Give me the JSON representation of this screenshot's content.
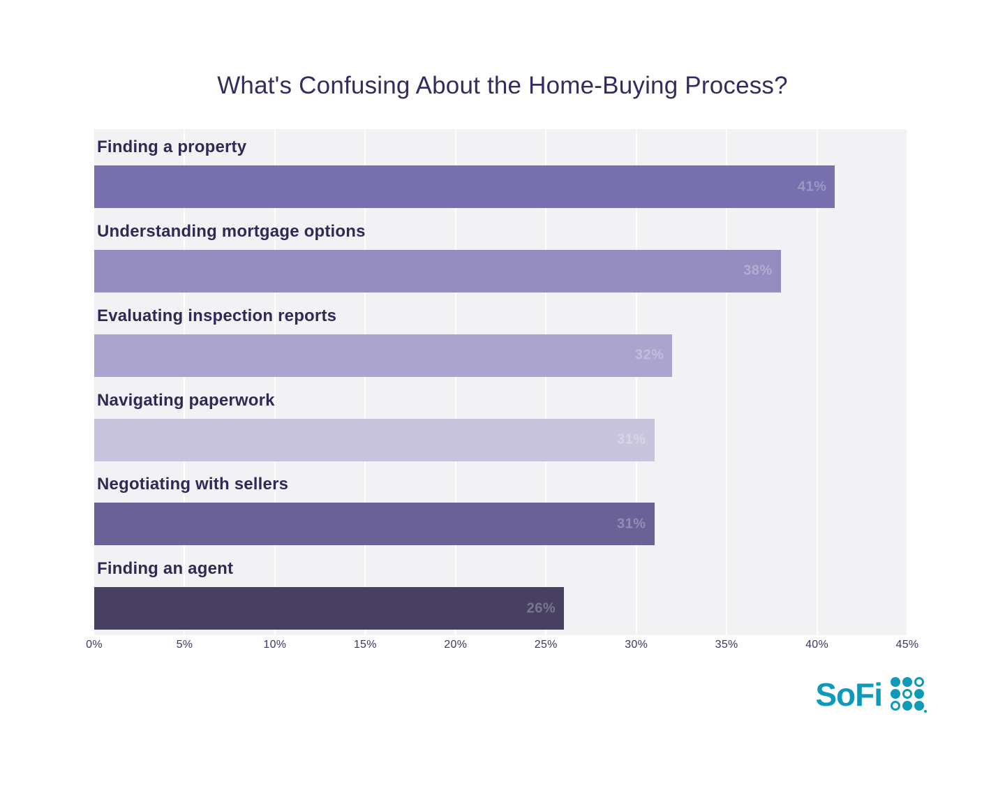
{
  "title": "What's Confusing About the Home-Buying Process?",
  "colors": {
    "page_bg": "#ffffff",
    "plot_bg": "#f2f2f4",
    "gridline": "rgba(255,255,255,0.85)",
    "title_text": "#332c5e",
    "category_text": "#2f2a55",
    "tick_text": "#3b3666",
    "value_text": "rgba(255,255,255,0.28)",
    "logo_teal": "#0e9ab8"
  },
  "chart_data": {
    "type": "bar",
    "orientation": "horizontal",
    "title": "What's Confusing About the Home-Buying Process?",
    "categories": [
      "Finding a property",
      "Understanding mortgage options",
      "Evaluating inspection reports",
      "Navigating paperwork",
      "Negotiating with sellers",
      "Finding an agent"
    ],
    "values": [
      41,
      38,
      32,
      31,
      31,
      26
    ],
    "value_labels": [
      "41%",
      "38%",
      "32%",
      "31%",
      "31%",
      "26%"
    ],
    "bar_colors": [
      "#776fae",
      "#958dc0",
      "#aba4cf",
      "#c8c4dd",
      "#6a6296",
      "#474063"
    ],
    "xlabel": "",
    "ylabel": "",
    "xlim": [
      0,
      45
    ],
    "x_ticks": [
      0,
      5,
      10,
      15,
      20,
      25,
      30,
      35,
      40,
      45
    ],
    "x_tick_labels": [
      "0%",
      "5%",
      "10%",
      "15%",
      "20%",
      "25%",
      "30%",
      "35%",
      "40%",
      "45%"
    ],
    "grid": true,
    "legend": false,
    "value_label_position": "inside-end"
  },
  "footer": {
    "logo_text": "SoFi",
    "logo_mark": "sofi-dot-grid-icon"
  }
}
